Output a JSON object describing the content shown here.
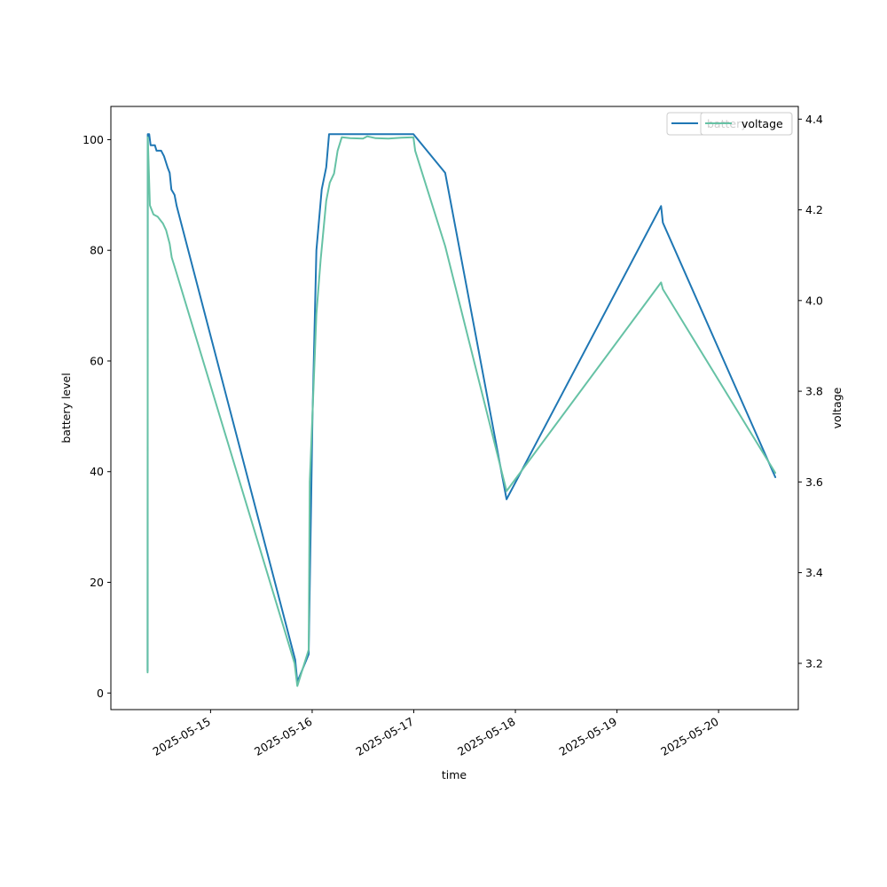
{
  "chart_data": {
    "type": "line",
    "title": "",
    "xlabel": "time",
    "ylabel": "battery level",
    "y2label": "voltage",
    "x_ticks": [
      "2025-05-15",
      "2025-05-16",
      "2025-05-17",
      "2025-05-18",
      "2025-05-19",
      "2025-05-20"
    ],
    "xlim": [
      "2025-05-14 00:27",
      "2025-05-20 18:50"
    ],
    "ylim": [
      -3,
      106
    ],
    "y_ticks": [
      0,
      20,
      40,
      60,
      80,
      100
    ],
    "y2lim": [
      3.098,
      4.428
    ],
    "y2_ticks": [
      3.2,
      3.4,
      3.6,
      3.8,
      4.0,
      4.2,
      4.4
    ],
    "grid": false,
    "legend_placement": "upper right",
    "series": [
      {
        "name": "battery",
        "axis": "left",
        "color": "#1f77b4",
        "points": [
          [
            "2025-05-14 09:07",
            4
          ],
          [
            "2025-05-14 09:10",
            101
          ],
          [
            "2025-05-14 09:30",
            101
          ],
          [
            "2025-05-14 09:50",
            99
          ],
          [
            "2025-05-14 10:50",
            99
          ],
          [
            "2025-05-14 11:15",
            98
          ],
          [
            "2025-05-14 12:20",
            98
          ],
          [
            "2025-05-14 13:00",
            97
          ],
          [
            "2025-05-14 13:50",
            95
          ],
          [
            "2025-05-14 14:20",
            94
          ],
          [
            "2025-05-14 14:45",
            91
          ],
          [
            "2025-05-14 15:30",
            90
          ],
          [
            "2025-05-14 16:00",
            88
          ],
          [
            "2025-05-15 20:00",
            6
          ],
          [
            "2025-05-15 20:30",
            2
          ],
          [
            "2025-05-15 23:10",
            7
          ],
          [
            "2025-05-16 00:05",
            50
          ],
          [
            "2025-05-16 01:00",
            80
          ],
          [
            "2025-05-16 02:15",
            91
          ],
          [
            "2025-05-16 03:20",
            95
          ],
          [
            "2025-05-16 04:00",
            101
          ],
          [
            "2025-05-16 23:55",
            101
          ],
          [
            "2025-05-17 07:25",
            94
          ],
          [
            "2025-05-17 21:55",
            35
          ],
          [
            "2025-05-19 10:25",
            88
          ],
          [
            "2025-05-19 10:50",
            85
          ],
          [
            "2025-05-20 13:25",
            39
          ]
        ]
      },
      {
        "name": "voltage",
        "axis": "right",
        "color": "#66c2a5",
        "points": [
          [
            "2025-05-14 09:07",
            3.18
          ],
          [
            "2025-05-14 09:10",
            4.36
          ],
          [
            "2025-05-14 09:40",
            4.21
          ],
          [
            "2025-05-14 10:30",
            4.19
          ],
          [
            "2025-05-14 11:30",
            4.185
          ],
          [
            "2025-05-14 12:20",
            4.175
          ],
          [
            "2025-05-14 12:45",
            4.17
          ],
          [
            "2025-05-14 13:30",
            4.155
          ],
          [
            "2025-05-14 14:20",
            4.125
          ],
          [
            "2025-05-14 14:50",
            4.095
          ],
          [
            "2025-05-14 15:30",
            4.075
          ],
          [
            "2025-05-15 19:50",
            3.2
          ],
          [
            "2025-05-15 20:30",
            3.15
          ],
          [
            "2025-05-15 23:10",
            3.23
          ],
          [
            "2025-05-15 23:25",
            3.6
          ],
          [
            "2025-05-16 00:05",
            3.75
          ],
          [
            "2025-05-16 01:00",
            3.97
          ],
          [
            "2025-05-16 02:00",
            4.09
          ],
          [
            "2025-05-16 03:20",
            4.22
          ],
          [
            "2025-05-16 04:10",
            4.26
          ],
          [
            "2025-05-16 05:10",
            4.28
          ],
          [
            "2025-05-16 06:00",
            4.33
          ],
          [
            "2025-05-16 07:00",
            4.36
          ],
          [
            "2025-05-16 09:00",
            4.358
          ],
          [
            "2025-05-16 12:00",
            4.357
          ],
          [
            "2025-05-16 13:00",
            4.362
          ],
          [
            "2025-05-16 15:00",
            4.358
          ],
          [
            "2025-05-16 18:00",
            4.357
          ],
          [
            "2025-05-16 21:00",
            4.359
          ],
          [
            "2025-05-16 23:55",
            4.36
          ],
          [
            "2025-05-17 00:20",
            4.33
          ],
          [
            "2025-05-17 07:25",
            4.12
          ],
          [
            "2025-05-17 21:55",
            3.58
          ],
          [
            "2025-05-19 10:25",
            4.04
          ],
          [
            "2025-05-19 10:50",
            4.025
          ],
          [
            "2025-05-20 13:25",
            3.62
          ]
        ]
      }
    ]
  }
}
